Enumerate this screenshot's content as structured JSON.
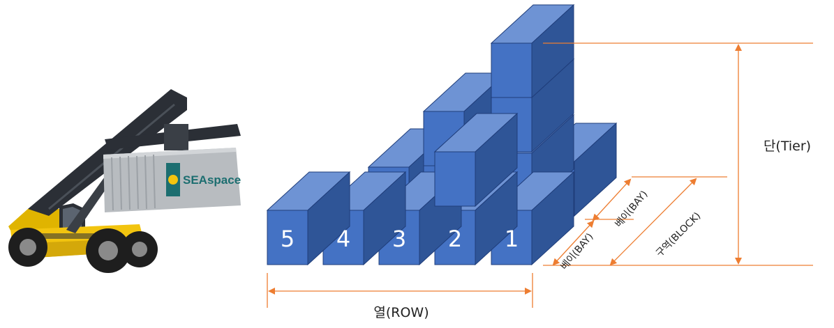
{
  "colors": {
    "container_front": "#4472C4",
    "container_top": "#6E93D4",
    "container_side": "#2F5597",
    "edge": "#1F3D7A",
    "dimension_line": "#ED7D31",
    "crane_body": "#F2C40F",
    "crane_boom": "#2B2F36",
    "carried_container": "#B8BCC0",
    "brand_teal": "#1C6E70"
  },
  "icons": [
    "reach-stacker-illustration",
    "double-arrow-icon"
  ],
  "crane": {
    "container_brand": "SEAspace"
  },
  "rows": [
    {
      "label": "5"
    },
    {
      "label": "4"
    },
    {
      "label": "3"
    },
    {
      "label": "2"
    },
    {
      "label": "1"
    }
  ],
  "dimensions": {
    "row": "열(ROW)",
    "tier": "단(Tier)",
    "bay_1": "베이(BAY)",
    "bay_2": "베이(BAY)",
    "block": "구역(BLOCK)"
  }
}
